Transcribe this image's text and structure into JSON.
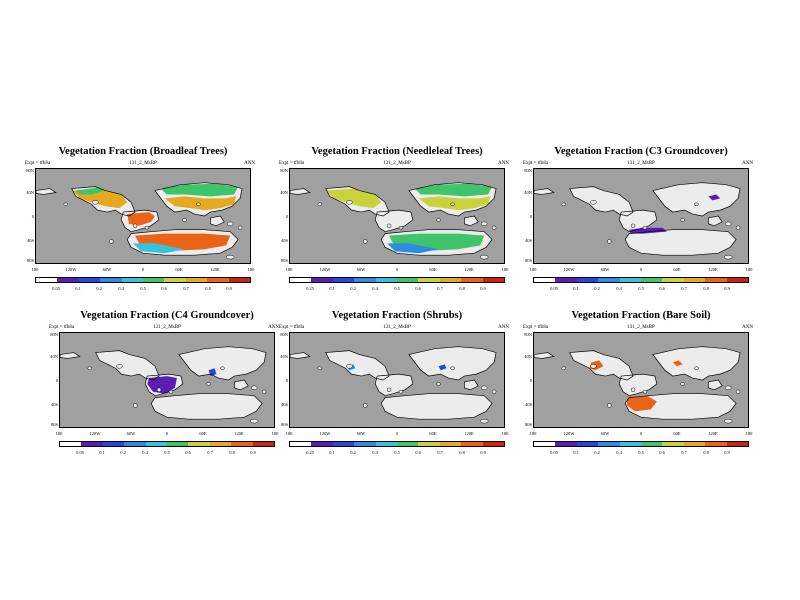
{
  "common": {
    "expt_label": "Expt = tfh8a",
    "run_label": "131_2_MsBP",
    "season_label": "ANN",
    "lat_ticks": [
      "80N",
      "40N",
      "0",
      "40S",
      "80S"
    ],
    "lon_ticks": [
      "180",
      "120W",
      "60W",
      "0",
      "60E",
      "120E",
      "180"
    ],
    "ocean_color": "#a0a0a0",
    "land_color": "#ececec",
    "coast_color": "#000000",
    "colorbar_colors": [
      "#ffffff",
      "#5b1eb4",
      "#2a46d8",
      "#2f8ae6",
      "#33c3df",
      "#3fc46b",
      "#c9d238",
      "#e6a81f",
      "#ea6418",
      "#cf2214"
    ],
    "colorbar_labels_first": "0.05",
    "colorbar_labels": [
      "0.1",
      "0.2",
      "0.4",
      "0.5",
      "0.6",
      "0.7",
      "0.8",
      "0.9"
    ]
  },
  "panels": [
    {
      "title": "Vegetation Fraction (Broadleaf Trees)",
      "colorbar_first": "0.05",
      "fields": [
        {
          "region": "na_interior",
          "level": 0.78
        },
        {
          "region": "na_north",
          "level": 0.5
        },
        {
          "region": "eurasia_south",
          "level": 0.82
        },
        {
          "region": "eurasia_north",
          "level": 0.6
        },
        {
          "region": "tropics_band",
          "level": 0.88
        },
        {
          "region": "s_continent",
          "level": 0.85
        },
        {
          "region": "s_continent_edge",
          "level": 0.45
        }
      ]
    },
    {
      "title": "Vegetation Fraction (Needleleaf Trees)",
      "colorbar_first": "0.25",
      "fields": [
        {
          "region": "na_interior",
          "level": 0.72
        },
        {
          "region": "eurasia_north",
          "level": 0.5
        },
        {
          "region": "eurasia_south",
          "level": 0.65
        },
        {
          "region": "s_continent",
          "level": 0.5
        },
        {
          "region": "s_continent_edge",
          "level": 0.3
        }
      ]
    },
    {
      "title": "Vegetation Fraction (C3 Groundcover)",
      "colorbar_first": "0.05",
      "fields": [
        {
          "region": "c3_strip",
          "level": 0.15
        },
        {
          "region": "c3_east",
          "level": 0.15
        }
      ]
    },
    {
      "title": "Vegetation Fraction (C4 Groundcover)",
      "colorbar_first": "0.05",
      "fields": [
        {
          "region": "c4_blob",
          "level": 0.12
        },
        {
          "region": "c4_east",
          "level": 0.2
        }
      ]
    },
    {
      "title": "Vegetation Fraction (Shrubs)",
      "colorbar_first": "0.25",
      "fields": [
        {
          "region": "shrub_a",
          "level": 0.3
        },
        {
          "region": "shrub_b",
          "level": 0.25
        }
      ]
    },
    {
      "title": "Vegetation Fraction (Bare Soil)",
      "colorbar_first": "0.05",
      "fields": [
        {
          "region": "bare_main",
          "level": 0.92
        },
        {
          "region": "bare_west",
          "level": 0.85
        },
        {
          "region": "bare_north",
          "level": 0.9
        }
      ]
    }
  ]
}
